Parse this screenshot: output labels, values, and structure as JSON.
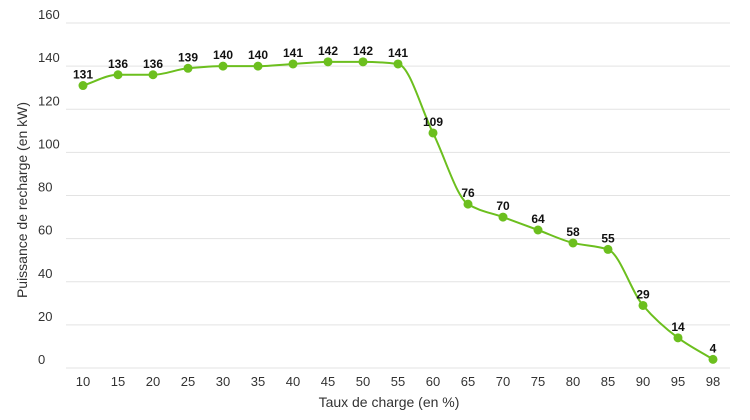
{
  "chart_data": {
    "type": "line",
    "title": "",
    "xlabel": "Taux de charge (en %)",
    "ylabel": "Puissance de recharge (en kW)",
    "ylim": [
      0,
      160
    ],
    "yticks": [
      "0",
      "20",
      "40",
      "60",
      "80",
      "100",
      "120",
      "140",
      "160"
    ],
    "categories": [
      "10",
      "15",
      "20",
      "25",
      "30",
      "35",
      "40",
      "45",
      "50",
      "55",
      "60",
      "65",
      "70",
      "75",
      "80",
      "85",
      "90",
      "95",
      "98"
    ],
    "series": [
      {
        "values": [
          131,
          136,
          136,
          139,
          140,
          140,
          141,
          142,
          142,
          141,
          109,
          76,
          70,
          64,
          58,
          55,
          29,
          14,
          4
        ],
        "color": "#6cbf1e"
      }
    ],
    "grid": true,
    "line_style": "smooth",
    "show_data_labels": true
  }
}
